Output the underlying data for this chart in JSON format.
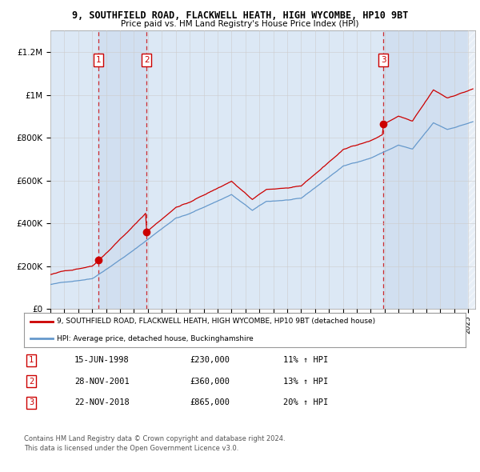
{
  "title": "9, SOUTHFIELD ROAD, FLACKWELL HEATH, HIGH WYCOMBE, HP10 9BT",
  "subtitle": "Price paid vs. HM Land Registry's House Price Index (HPI)",
  "x_start": 1995.0,
  "x_end": 2025.5,
  "ylim": [
    0,
    1300000
  ],
  "yticks": [
    0,
    200000,
    400000,
    600000,
    800000,
    1000000,
    1200000
  ],
  "ytick_labels": [
    "£0",
    "£200K",
    "£400K",
    "£600K",
    "£800K",
    "£1M",
    "£1.2M"
  ],
  "xtick_years": [
    1995,
    1996,
    1997,
    1998,
    1999,
    2000,
    2001,
    2002,
    2003,
    2004,
    2005,
    2006,
    2007,
    2008,
    2009,
    2010,
    2011,
    2012,
    2013,
    2014,
    2015,
    2016,
    2017,
    2018,
    2019,
    2020,
    2021,
    2022,
    2023,
    2024,
    2025
  ],
  "sale_dates": [
    1998.46,
    2001.91,
    2018.9
  ],
  "sale_prices": [
    230000,
    360000,
    865000
  ],
  "sale_labels": [
    "1",
    "2",
    "3"
  ],
  "vline_color": "#cc0000",
  "sale_marker_color": "#cc0000",
  "red_line_color": "#cc0000",
  "blue_line_color": "#6699cc",
  "background_color": "#ffffff",
  "plot_bg_color": "#dce8f5",
  "shade_band_color": "#dce8f8",
  "grid_color": "#cccccc",
  "legend_label_red": "9, SOUTHFIELD ROAD, FLACKWELL HEATH, HIGH WYCOMBE, HP10 9BT (detached house)",
  "legend_label_blue": "HPI: Average price, detached house, Buckinghamshire",
  "table_rows": [
    {
      "num": "1",
      "date": "15-JUN-1998",
      "price": "£230,000",
      "hpi": "11% ↑ HPI"
    },
    {
      "num": "2",
      "date": "28-NOV-2001",
      "price": "£360,000",
      "hpi": "13% ↑ HPI"
    },
    {
      "num": "3",
      "date": "22-NOV-2018",
      "price": "£865,000",
      "hpi": "20% ↑ HPI"
    }
  ],
  "footer": [
    "Contains HM Land Registry data © Crown copyright and database right 2024.",
    "This data is licensed under the Open Government Licence v3.0."
  ]
}
